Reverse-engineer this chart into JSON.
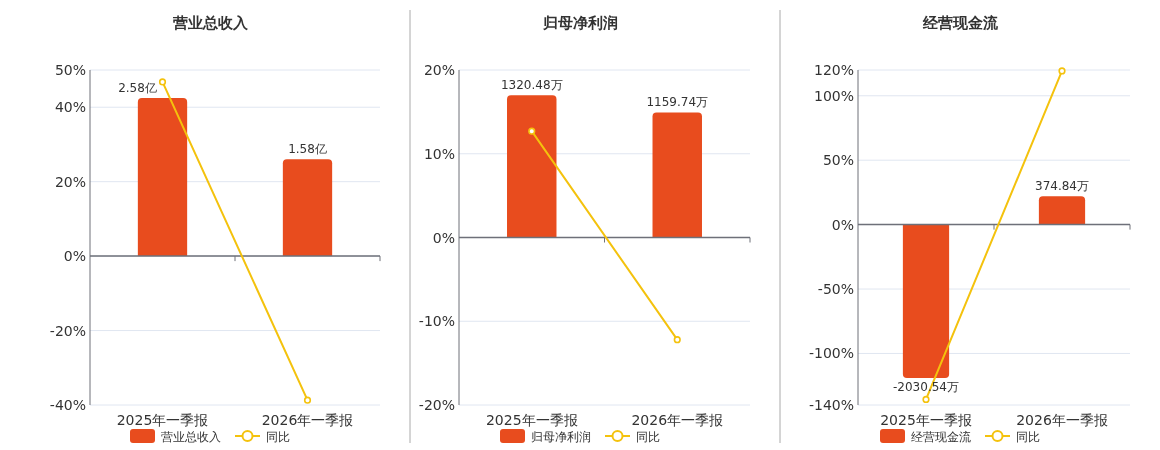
{
  "chart_data": [
    {
      "type": "bar",
      "title": "营业总收入",
      "categories": [
        "2025年一季报",
        "2026年一季报"
      ],
      "series": [
        {
          "name": "营业总收入",
          "type": "bar",
          "color": "#e84c1e",
          "axis": "y2",
          "values": [
            2.58,
            1.58
          ],
          "value_labels": [
            "2.58亿",
            "1.58亿"
          ]
        },
        {
          "name": "同比",
          "type": "line",
          "color": "#f4c20d",
          "values": [
            46.8,
            -38.7
          ]
        }
      ],
      "ylim": [
        -40,
        50
      ],
      "yticks": [
        {
          "value": -40,
          "label": "-40%"
        },
        {
          "value": -20,
          "label": "-20%"
        },
        {
          "value": 0,
          "label": "0%"
        },
        {
          "value": 20,
          "label": "20%"
        },
        {
          "value": 40,
          "label": "40%"
        },
        {
          "value": 50,
          "label": "50%"
        }
      ],
      "grid": "y",
      "legend": "bottom",
      "tick_labels": "xy",
      "marker": "circle"
    },
    {
      "type": "bar",
      "title": "归母净利润",
      "categories": [
        "2025年一季报",
        "2026年一季报"
      ],
      "series": [
        {
          "name": "归母净利润",
          "type": "bar",
          "color": "#e84c1e",
          "axis": "y2",
          "values": [
            1320.48,
            1159.74
          ],
          "value_labels": [
            "1320.48万",
            "1159.74万"
          ]
        },
        {
          "name": "同比",
          "type": "line",
          "color": "#f4c20d",
          "values": [
            12.7,
            -12.2
          ]
        }
      ],
      "ylim": [
        -20,
        20
      ],
      "yticks": [
        {
          "value": -20,
          "label": "-20%"
        },
        {
          "value": -10,
          "label": "-10%"
        },
        {
          "value": 0,
          "label": "0%"
        },
        {
          "value": 10,
          "label": "10%"
        },
        {
          "value": 20,
          "label": "20%"
        }
      ],
      "grid": "y",
      "legend": "bottom",
      "tick_labels": "xy",
      "marker": "circle"
    },
    {
      "type": "bar",
      "title": "经营现金流",
      "categories": [
        "2025年一季报",
        "2026年一季报"
      ],
      "series": [
        {
          "name": "经营现金流",
          "type": "bar",
          "color": "#e84c1e",
          "axis": "y2",
          "values": [
            -2030.54,
            374.84
          ],
          "value_labels": [
            "-2030.54万",
            "374.84万"
          ]
        },
        {
          "name": "同比",
          "type": "line",
          "color": "#f4c20d",
          "values": [
            -135.7,
            119.3
          ]
        }
      ],
      "ylim": [
        -140,
        120
      ],
      "yticks": [
        {
          "value": -140,
          "label": "-140%"
        },
        {
          "value": -100,
          "label": "-100%"
        },
        {
          "value": -50,
          "label": "-50%"
        },
        {
          "value": 0,
          "label": "0%"
        },
        {
          "value": 50,
          "label": "50%"
        },
        {
          "value": 100,
          "label": "100%"
        },
        {
          "value": 120,
          "label": "120%"
        }
      ],
      "grid": "y",
      "legend": "bottom",
      "tick_labels": "xy",
      "marker": "circle"
    }
  ]
}
